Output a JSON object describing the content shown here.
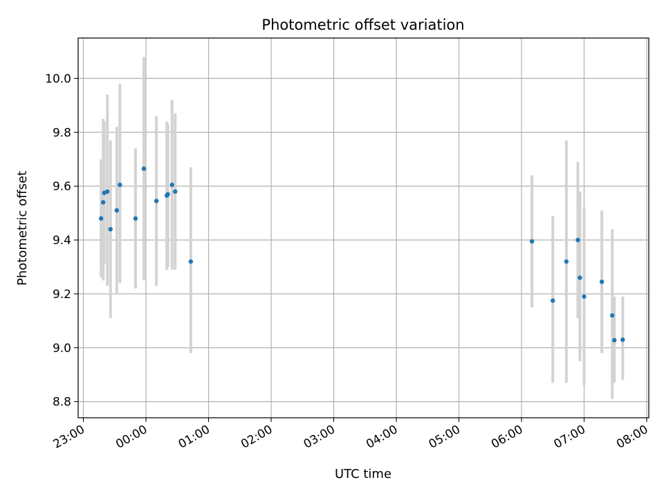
{
  "chart_data": {
    "type": "scatter",
    "title": "Photometric offset variation",
    "xlabel": "UTC time",
    "ylabel": "Photometric offset",
    "x_ticks": [
      "23:00",
      "00:00",
      "01:00",
      "02:00",
      "03:00",
      "04:00",
      "05:00",
      "06:00",
      "07:00",
      "08:00"
    ],
    "y_ticks": [
      "8.8",
      "9.0",
      "9.2",
      "9.4",
      "9.6",
      "9.8",
      "10.0"
    ],
    "xlim": [
      "22:55",
      "08:02"
    ],
    "ylim": [
      8.74,
      10.15
    ],
    "grid": true,
    "point_color": "#1f77b4",
    "errorbar_color": "#d3d3d3",
    "points": [
      {
        "t": "23:17",
        "y": 9.48,
        "lo": 9.26,
        "hi": 9.7
      },
      {
        "t": "23:19",
        "y": 9.54,
        "lo": 9.25,
        "hi": 9.85
      },
      {
        "t": "23:20",
        "y": 9.575,
        "lo": 9.31,
        "hi": 9.84
      },
      {
        "t": "23:23",
        "y": 9.58,
        "lo": 9.23,
        "hi": 9.94
      },
      {
        "t": "23:26",
        "y": 9.44,
        "lo": 9.11,
        "hi": 9.77
      },
      {
        "t": "23:32",
        "y": 9.51,
        "lo": 9.2,
        "hi": 9.82
      },
      {
        "t": "23:35",
        "y": 9.605,
        "lo": 9.24,
        "hi": 9.98
      },
      {
        "t": "23:50",
        "y": 9.48,
        "lo": 9.22,
        "hi": 9.74
      },
      {
        "t": "23:58",
        "y": 9.665,
        "lo": 9.25,
        "hi": 10.08
      },
      {
        "t": "00:10",
        "y": 9.545,
        "lo": 9.23,
        "hi": 9.86
      },
      {
        "t": "00:20",
        "y": 9.565,
        "lo": 9.29,
        "hi": 9.84
      },
      {
        "t": "00:21",
        "y": 9.57,
        "lo": 9.3,
        "hi": 9.83
      },
      {
        "t": "00:25",
        "y": 9.605,
        "lo": 9.29,
        "hi": 9.92
      },
      {
        "t": "00:28",
        "y": 9.58,
        "lo": 9.29,
        "hi": 9.87
      },
      {
        "t": "00:43",
        "y": 9.32,
        "lo": 8.98,
        "hi": 9.67
      },
      {
        "t": "06:10",
        "y": 9.395,
        "lo": 9.15,
        "hi": 9.64
      },
      {
        "t": "06:30",
        "y": 9.175,
        "lo": 8.87,
        "hi": 9.49
      },
      {
        "t": "06:43",
        "y": 9.32,
        "lo": 8.87,
        "hi": 9.77
      },
      {
        "t": "06:54",
        "y": 9.4,
        "lo": 9.11,
        "hi": 9.69
      },
      {
        "t": "06:56",
        "y": 9.26,
        "lo": 8.95,
        "hi": 9.58
      },
      {
        "t": "07:00",
        "y": 9.19,
        "lo": 8.86,
        "hi": 9.52
      },
      {
        "t": "07:17",
        "y": 9.245,
        "lo": 8.98,
        "hi": 9.51
      },
      {
        "t": "07:27",
        "y": 9.12,
        "lo": 8.81,
        "hi": 9.44
      },
      {
        "t": "07:29",
        "y": 9.028,
        "lo": 8.87,
        "hi": 9.19
      },
      {
        "t": "07:37",
        "y": 9.03,
        "lo": 8.88,
        "hi": 9.19
      }
    ]
  }
}
